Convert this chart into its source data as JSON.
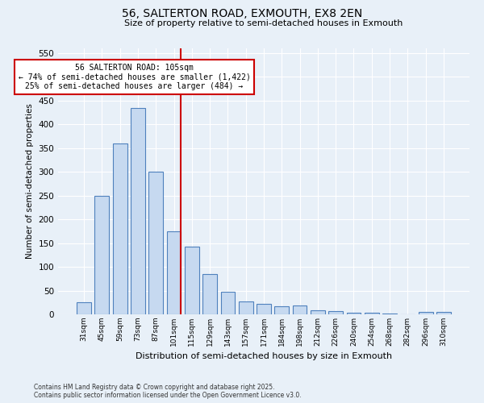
{
  "title1": "56, SALTERTON ROAD, EXMOUTH, EX8 2EN",
  "title2": "Size of property relative to semi-detached houses in Exmouth",
  "xlabel": "Distribution of semi-detached houses by size in Exmouth",
  "ylabel": "Number of semi-detached properties",
  "categories": [
    "31sqm",
    "45sqm",
    "59sqm",
    "73sqm",
    "87sqm",
    "101sqm",
    "115sqm",
    "129sqm",
    "143sqm",
    "157sqm",
    "171sqm",
    "184sqm",
    "198sqm",
    "212sqm",
    "226sqm",
    "240sqm",
    "254sqm",
    "268sqm",
    "282sqm",
    "296sqm",
    "310sqm"
  ],
  "values": [
    25,
    250,
    360,
    435,
    300,
    175,
    142,
    85,
    47,
    28,
    22,
    17,
    18,
    9,
    6,
    4,
    4,
    1,
    0,
    5,
    5
  ],
  "bar_color": "#c6d9f0",
  "bar_edge_color": "#4f81bd",
  "property_bin_index": 5,
  "annotation_title": "56 SALTERTON ROAD: 105sqm",
  "annotation_line1": "← 74% of semi-detached houses are smaller (1,422)",
  "annotation_line2": "25% of semi-detached houses are larger (484) →",
  "red_line_color": "#cc0000",
  "annotation_box_color": "#ffffff",
  "annotation_box_edge": "#cc0000",
  "background_color": "#e8f0f8",
  "ylim": [
    0,
    560
  ],
  "yticks": [
    0,
    50,
    100,
    150,
    200,
    250,
    300,
    350,
    400,
    450,
    500,
    550
  ],
  "footer1": "Contains HM Land Registry data © Crown copyright and database right 2025.",
  "footer2": "Contains public sector information licensed under the Open Government Licence v3.0."
}
